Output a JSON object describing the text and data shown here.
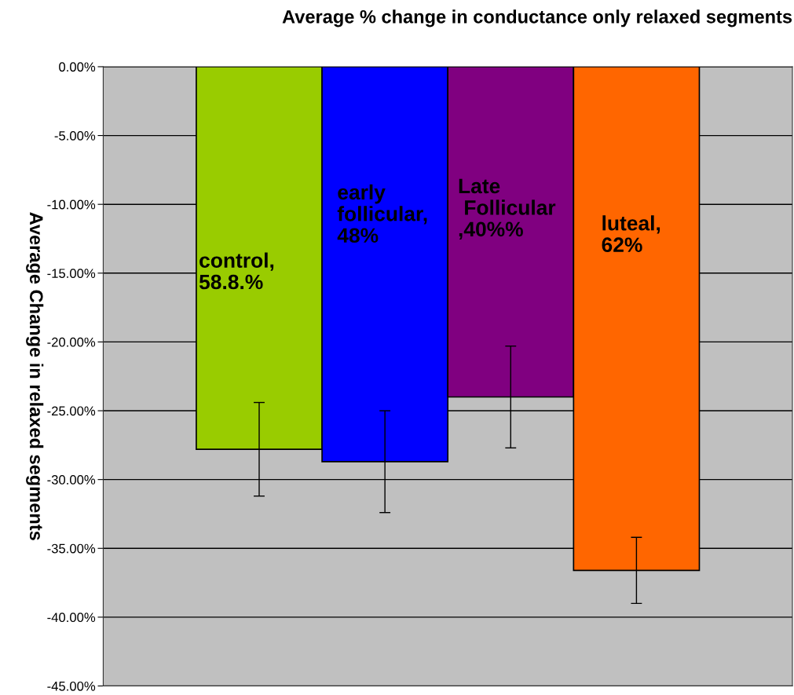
{
  "chart_data": {
    "type": "bar",
    "title": "Average % change in conductance only relaxed segments",
    "ylabel": "Average Change in relaxed segments",
    "categories": [
      null,
      null,
      null,
      null
    ],
    "values": [
      -27.8,
      -28.7,
      -24.0,
      -36.6
    ],
    "errors": [
      3.4,
      3.7,
      3.7,
      2.4
    ],
    "colors": [
      "#99cc00",
      "#0000ff",
      "#800080",
      "#ff6600"
    ],
    "annotations": [
      "control,\n58.8.%",
      "early\nfollicular,\n48%",
      "Late\n Follicular\n,40%%",
      "luteal,\n62%"
    ],
    "ylim": [
      -45,
      0
    ],
    "yticks": [
      {
        "value": 0,
        "label": "0.00%"
      },
      {
        "value": -5,
        "label": "-5.00%"
      },
      {
        "value": -10,
        "label": "-10.00%"
      },
      {
        "value": -15,
        "label": "-15.00%"
      },
      {
        "value": -20,
        "label": "-20.00%"
      },
      {
        "value": -25,
        "label": "-25.00%"
      },
      {
        "value": -30,
        "label": "-30.00%"
      },
      {
        "value": -35,
        "label": "-35.00%"
      },
      {
        "value": -40,
        "label": "-40.00%"
      },
      {
        "value": -45,
        "label": "-45.00%"
      }
    ],
    "grid": "y",
    "tick_labels": "y"
  }
}
